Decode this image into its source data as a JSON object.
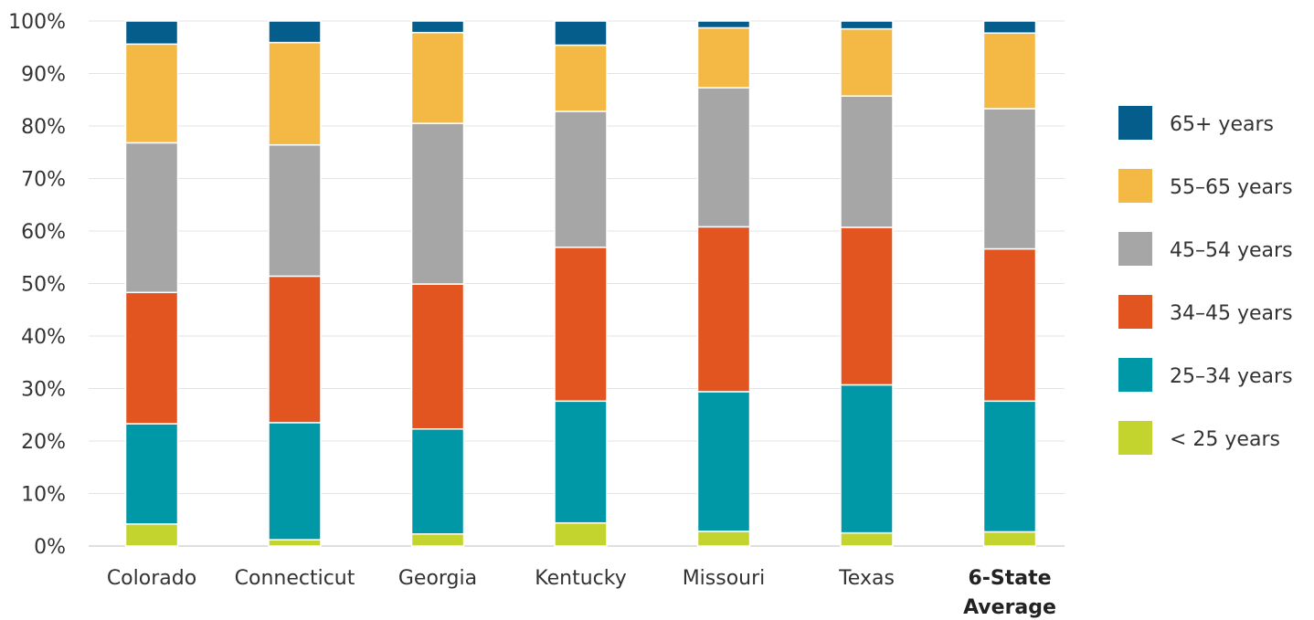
{
  "chart_data": {
    "type": "bar",
    "stacked": true,
    "title": "",
    "xlabel": "",
    "ylabel": "",
    "ylim": [
      0,
      100
    ],
    "y_ticks": [
      "0%",
      "10%",
      "20%",
      "30%",
      "40%",
      "50%",
      "60%",
      "70%",
      "80%",
      "90%",
      "100%"
    ],
    "grid": true,
    "legend_position": "right",
    "categories": [
      {
        "lines": [
          "Colorado"
        ],
        "bold": false
      },
      {
        "lines": [
          "Connecticut"
        ],
        "bold": false
      },
      {
        "lines": [
          "Georgia"
        ],
        "bold": false
      },
      {
        "lines": [
          "Kentucky"
        ],
        "bold": false
      },
      {
        "lines": [
          "Missouri"
        ],
        "bold": false
      },
      {
        "lines": [
          "Texas"
        ],
        "bold": false
      },
      {
        "lines": [
          "6-State",
          "Average"
        ],
        "bold": true
      }
    ],
    "series": [
      {
        "name": "< 25 years",
        "color": "#c4d42e",
        "values": [
          4.2,
          1.2,
          2.3,
          4.4,
          2.8,
          2.5,
          2.7
        ]
      },
      {
        "name": "25–34 years",
        "color": "#0097a7",
        "values": [
          19.1,
          22.3,
          20.0,
          23.2,
          26.6,
          28.2,
          24.9
        ]
      },
      {
        "name": "34–45 years",
        "color": "#e35520",
        "values": [
          25.0,
          27.9,
          27.6,
          29.3,
          31.4,
          30.0,
          29.0
        ]
      },
      {
        "name": "45–54 years",
        "color": "#a6a6a6",
        "values": [
          28.5,
          25.0,
          30.6,
          25.9,
          26.5,
          25.0,
          26.7
        ]
      },
      {
        "name": "55–65 years",
        "color": "#f3b944",
        "values": [
          18.8,
          19.5,
          17.3,
          12.6,
          11.4,
          12.8,
          14.4
        ]
      },
      {
        "name": "65+ years",
        "color": "#045d8a",
        "values": [
          4.4,
          4.1,
          2.2,
          4.6,
          1.3,
          1.5,
          2.3
        ]
      }
    ]
  }
}
